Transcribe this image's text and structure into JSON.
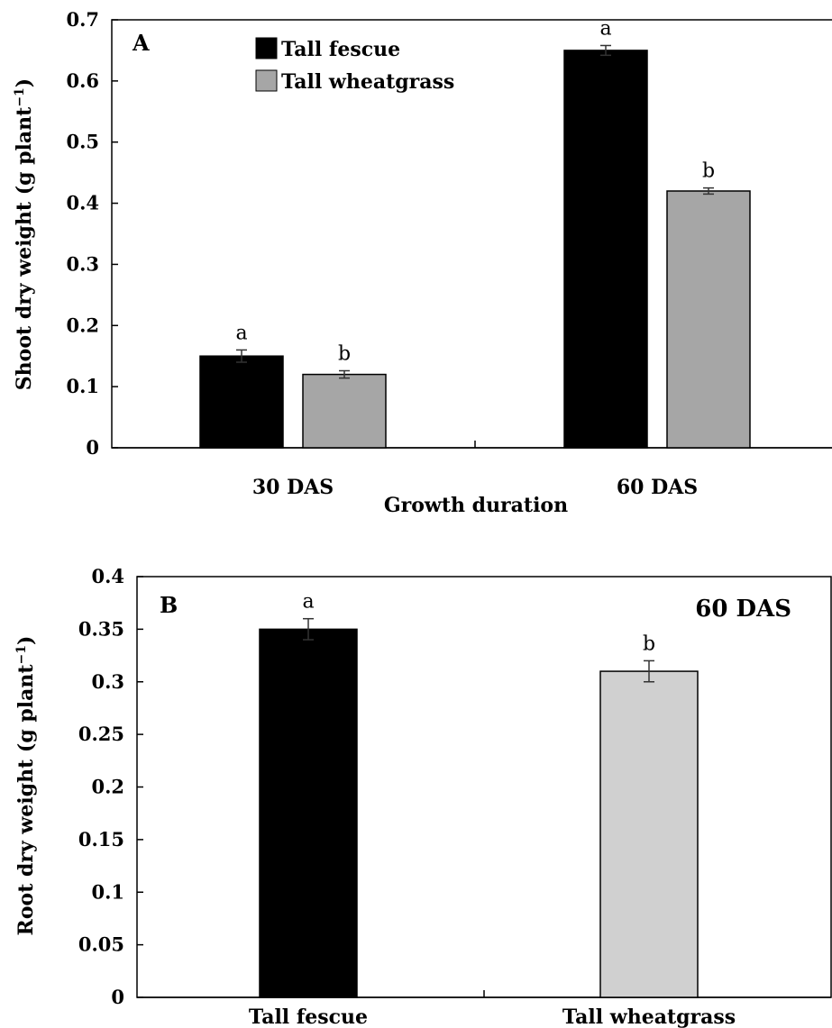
{
  "chart_data": [
    {
      "panel": "A",
      "type": "bar",
      "categories": [
        "30 DAS",
        "60 DAS"
      ],
      "series": [
        {
          "name": "Tall fescue",
          "color": "#000000",
          "values": [
            0.15,
            0.65
          ],
          "errors": [
            0.01,
            0.008
          ],
          "letters": [
            "a",
            "a"
          ]
        },
        {
          "name": "Tall wheatgrass",
          "color": "#a6a6a6",
          "values": [
            0.12,
            0.42
          ],
          "errors": [
            0.006,
            0.005
          ],
          "letters": [
            "b",
            "b"
          ]
        }
      ],
      "xlabel": "Growth duration",
      "ylabel": "Shoot dry weight (g plant",
      "ylabel_sup": "−1",
      "ylabel_end": ")",
      "ylim": [
        0,
        0.7
      ],
      "yticks": [
        "0",
        "0.1",
        "0.2",
        "0.3",
        "0.4",
        "0.5",
        "0.6",
        "0.7"
      ],
      "grid": false,
      "legend": "top-left"
    },
    {
      "panel": "B",
      "type": "bar",
      "annotation": "60 DAS",
      "categories": [
        "Tall fescue",
        "Tall wheatgrass"
      ],
      "series": [
        {
          "values": [
            0.35,
            0.31
          ],
          "errors": [
            0.01,
            0.01
          ],
          "letters": [
            "a",
            "b"
          ],
          "colors": [
            "#000000",
            "#d0d0d0"
          ]
        }
      ],
      "ylabel": "Root dry weight (g plant",
      "ylabel_sup": "−1",
      "ylabel_end": ")",
      "ylim": [
        0,
        0.4
      ],
      "yticks": [
        "0",
        "0.05",
        "0.1",
        "0.15",
        "0.2",
        "0.25",
        "0.3",
        "0.35",
        "0.4"
      ],
      "grid": false
    }
  ]
}
